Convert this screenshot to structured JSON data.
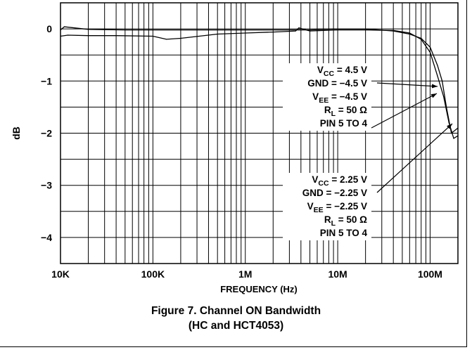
{
  "chart_data": {
    "type": "line",
    "xscale": "log",
    "xlim": [
      10000,
      200000000
    ],
    "ylim": [
      -4.5,
      0.5
    ],
    "grid": true,
    "xlabel": "FREQUENCY (Hz)",
    "ylabel": "dB",
    "xticks": [
      {
        "value": 10000,
        "label": "10K"
      },
      {
        "value": 100000,
        "label": "100K"
      },
      {
        "value": 1000000,
        "label": "1M"
      },
      {
        "value": 10000000,
        "label": "10M"
      },
      {
        "value": 100000000,
        "label": "100M"
      }
    ],
    "yticks": [
      {
        "value": 0,
        "label": "0"
      },
      {
        "value": -1,
        "label": "−1"
      },
      {
        "value": -2,
        "label": "−2"
      },
      {
        "value": -3,
        "label": "−3"
      },
      {
        "value": -4,
        "label": "−4"
      }
    ],
    "series": [
      {
        "x": [
          10000,
          12000,
          20000,
          40000,
          100000,
          140000,
          200000,
          500000,
          1000000,
          2000000,
          3500000,
          3800000,
          5000000,
          10000000,
          20000000,
          40000000,
          60000000,
          80000000,
          100000000,
          120000000,
          140000000,
          160000000,
          180000000,
          200000000
        ],
        "y": [
          -0.14,
          -0.12,
          -0.13,
          -0.13,
          -0.14,
          -0.2,
          -0.18,
          -0.1,
          -0.08,
          -0.06,
          -0.04,
          0.02,
          -0.04,
          -0.02,
          -0.02,
          -0.03,
          -0.08,
          -0.2,
          -0.45,
          -0.9,
          -1.3,
          -1.8,
          -2.1,
          -2.05
        ]
      },
      {
        "x": [
          10000,
          11000,
          20000,
          50000,
          100000,
          1000000,
          5000000,
          10000000,
          20000000,
          40000000,
          60000000,
          80000000,
          100000000,
          120000000,
          135000000,
          150000000,
          170000000,
          200000000
        ],
        "y": [
          -0.02,
          0.04,
          -0.01,
          -0.02,
          -0.02,
          -0.02,
          -0.02,
          0.0,
          0.0,
          -0.04,
          -0.1,
          -0.18,
          -0.35,
          -0.7,
          -1.0,
          -1.5,
          -2.0,
          -1.9
        ]
      }
    ],
    "annotations": [
      {
        "lines": [
          {
            "text": "V",
            "sub": "CC",
            "rest": " = 4.5 V"
          },
          {
            "text": "GND = −4.5 V",
            "sub": "",
            "rest": ""
          },
          {
            "text": "V",
            "sub": "EE",
            "rest": " = −4.5 V"
          },
          {
            "text": "R",
            "sub": "L",
            "rest": " = 50 Ω"
          },
          {
            "text": "PIN 5 TO 4",
            "sub": "",
            "rest": ""
          }
        ]
      },
      {
        "lines": [
          {
            "text": "V",
            "sub": "CC",
            "rest": " = 2.25 V"
          },
          {
            "text": "GND = −2.25 V",
            "sub": "",
            "rest": ""
          },
          {
            "text": "V",
            "sub": "EE",
            "rest": " = −2.25 V"
          },
          {
            "text": "R",
            "sub": "L",
            "rest": " = 50 Ω"
          },
          {
            "text": "PIN 5 TO 4",
            "sub": "",
            "rest": ""
          }
        ]
      }
    ]
  },
  "caption": {
    "line1": "Figure 7. Channel ON Bandwidth",
    "line2": "(HC and HCT4053)"
  }
}
